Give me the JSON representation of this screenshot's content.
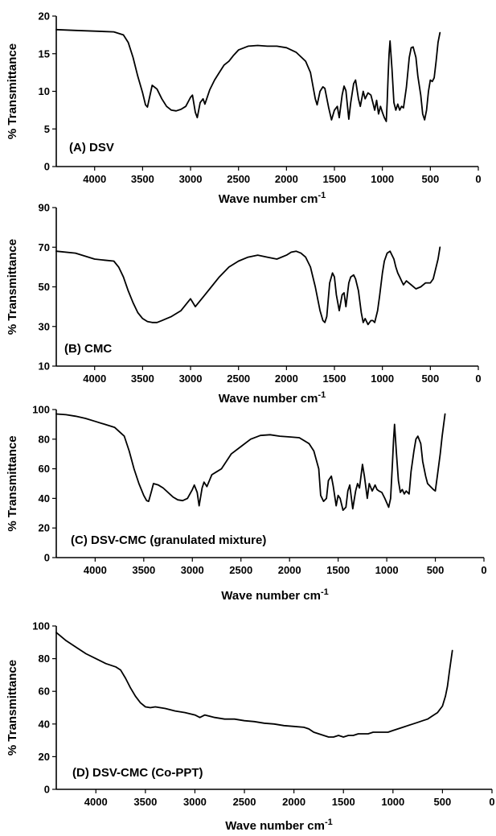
{
  "chart_data": [
    {
      "type": "line",
      "panel_label": "(A) DSV",
      "xlabel": "Wave number cm",
      "xlabel_sup": "-1",
      "ylabel": "% Transmittance",
      "xlim": [
        4400,
        0
      ],
      "ylim": [
        0,
        20
      ],
      "xticks": [
        4000,
        3500,
        3000,
        2500,
        2000,
        1500,
        1000,
        500,
        0
      ],
      "yticks": [
        0,
        5,
        10,
        15,
        20
      ],
      "grid": false,
      "x": [
        4400,
        4200,
        4000,
        3800,
        3700,
        3650,
        3600,
        3550,
        3500,
        3470,
        3450,
        3400,
        3350,
        3300,
        3250,
        3200,
        3150,
        3100,
        3050,
        3000,
        2980,
        2950,
        2930,
        2900,
        2870,
        2850,
        2800,
        2750,
        2700,
        2650,
        2600,
        2550,
        2500,
        2400,
        2300,
        2200,
        2100,
        2000,
        1900,
        1800,
        1750,
        1700,
        1680,
        1650,
        1620,
        1600,
        1560,
        1530,
        1500,
        1470,
        1450,
        1420,
        1400,
        1380,
        1350,
        1330,
        1300,
        1280,
        1250,
        1230,
        1200,
        1180,
        1150,
        1120,
        1100,
        1080,
        1060,
        1040,
        1020,
        1000,
        980,
        960,
        950,
        940,
        930,
        920,
        900,
        880,
        860,
        840,
        820,
        800,
        780,
        750,
        720,
        700,
        680,
        650,
        630,
        600,
        580,
        560,
        540,
        520,
        500,
        480,
        460,
        440,
        420,
        400
      ],
      "y": [
        18.2,
        18.1,
        18.0,
        17.9,
        17.5,
        16.5,
        14.5,
        12.0,
        9.8,
        8.2,
        7.9,
        10.8,
        10.3,
        9.0,
        8.0,
        7.5,
        7.4,
        7.6,
        8.0,
        9.2,
        9.5,
        7.2,
        6.5,
        8.5,
        9.0,
        8.3,
        10.2,
        11.5,
        12.5,
        13.5,
        14.0,
        14.8,
        15.5,
        16.0,
        16.1,
        16.0,
        16.0,
        15.8,
        15.2,
        14.0,
        12.5,
        9.0,
        8.2,
        10.0,
        10.6,
        10.4,
        7.8,
        6.2,
        7.5,
        8.0,
        6.5,
        9.5,
        10.7,
        10.1,
        6.3,
        8.5,
        11.0,
        11.5,
        9.0,
        8.0,
        10.0,
        9.0,
        9.8,
        9.5,
        8.5,
        7.5,
        8.8,
        7.0,
        8.0,
        7.2,
        6.5,
        6.0,
        8.5,
        12.0,
        15.0,
        16.7,
        13.0,
        8.5,
        7.5,
        8.3,
        7.5,
        8.0,
        7.8,
        10.5,
        14.5,
        15.8,
        15.9,
        14.5,
        12.0,
        9.5,
        7.0,
        6.2,
        7.5,
        10.0,
        11.5,
        11.3,
        11.8,
        14.0,
        16.5,
        17.8
      ]
    },
    {
      "type": "line",
      "panel_label": "(B) CMC",
      "xlabel": "Wave number cm",
      "xlabel_sup": "-1",
      "ylabel": "% Transmittance",
      "xlim": [
        4400,
        0
      ],
      "ylim": [
        10,
        90
      ],
      "xticks": [
        4000,
        3500,
        3000,
        2500,
        2000,
        1500,
        1000,
        500,
        0
      ],
      "yticks": [
        10,
        30,
        50,
        70,
        90
      ],
      "grid": false,
      "x": [
        4400,
        4200,
        4000,
        3900,
        3800,
        3750,
        3700,
        3650,
        3600,
        3550,
        3500,
        3450,
        3400,
        3350,
        3300,
        3250,
        3200,
        3100,
        3000,
        2950,
        2900,
        2850,
        2800,
        2700,
        2600,
        2500,
        2400,
        2300,
        2200,
        2100,
        2000,
        1950,
        1900,
        1850,
        1800,
        1750,
        1700,
        1650,
        1620,
        1600,
        1580,
        1550,
        1520,
        1500,
        1480,
        1450,
        1420,
        1400,
        1380,
        1350,
        1330,
        1300,
        1280,
        1250,
        1220,
        1200,
        1180,
        1150,
        1120,
        1100,
        1080,
        1050,
        1030,
        1000,
        980,
        950,
        920,
        900,
        880,
        860,
        840,
        820,
        800,
        780,
        750,
        700,
        650,
        600,
        550,
        500,
        470,
        450,
        420,
        400
      ],
      "y": [
        68,
        67,
        64,
        63.5,
        63,
        60,
        55,
        48,
        42,
        37,
        34,
        32.5,
        32,
        32,
        33,
        34,
        35,
        38,
        44,
        40,
        43,
        46,
        49,
        55,
        60,
        63,
        65,
        66,
        65,
        64,
        66,
        67.5,
        68,
        67,
        65,
        60,
        50,
        38,
        33,
        32,
        35,
        52,
        57,
        55,
        46,
        38,
        46,
        47,
        40,
        52,
        55,
        56,
        54,
        48,
        37,
        32,
        34,
        31,
        33,
        33,
        32,
        38,
        45,
        57,
        63,
        67,
        68,
        66,
        64,
        60,
        57,
        55,
        53,
        51,
        53,
        51,
        49,
        50,
        52,
        52,
        54,
        58,
        64,
        70
      ]
    },
    {
      "type": "line",
      "panel_label": "(C) DSV-CMC  (granulated mixture)",
      "xlabel": "Wave number cm",
      "xlabel_sup": "-1",
      "ylabel": "% Transmittance",
      "xlim": [
        4400,
        0
      ],
      "ylim": [
        0,
        100
      ],
      "xticks": [
        4000,
        3500,
        3000,
        2500,
        2000,
        1500,
        1000,
        500,
        0
      ],
      "yticks": [
        0,
        20,
        40,
        60,
        80,
        100
      ],
      "grid": false,
      "x": [
        4400,
        4300,
        4200,
        4100,
        4000,
        3900,
        3800,
        3700,
        3650,
        3600,
        3550,
        3500,
        3470,
        3450,
        3420,
        3400,
        3350,
        3300,
        3250,
        3200,
        3150,
        3100,
        3050,
        3000,
        2980,
        2950,
        2930,
        2900,
        2880,
        2850,
        2800,
        2750,
        2700,
        2650,
        2600,
        2500,
        2400,
        2300,
        2200,
        2100,
        2000,
        1900,
        1800,
        1750,
        1700,
        1680,
        1650,
        1620,
        1600,
        1570,
        1550,
        1520,
        1500,
        1480,
        1450,
        1420,
        1400,
        1380,
        1350,
        1320,
        1300,
        1280,
        1250,
        1230,
        1200,
        1180,
        1150,
        1120,
        1100,
        1080,
        1050,
        1020,
        1000,
        980,
        960,
        940,
        930,
        920,
        900,
        880,
        860,
        840,
        820,
        800,
        770,
        750,
        720,
        700,
        680,
        650,
        630,
        600,
        580,
        550,
        520,
        500,
        480,
        450,
        430,
        400
      ],
      "y": [
        97,
        96.5,
        95.5,
        94,
        92,
        90,
        88,
        82,
        72,
        60,
        50,
        42,
        38.5,
        38,
        45,
        50,
        49,
        47,
        44,
        41,
        39,
        38.5,
        40,
        46,
        49,
        44,
        35,
        47,
        51,
        48,
        56,
        58,
        60,
        65,
        70,
        75,
        80,
        82.5,
        83,
        82,
        81.5,
        81,
        77,
        72,
        60,
        42,
        38,
        40,
        52,
        55,
        48,
        35,
        42,
        40,
        32,
        34,
        45,
        49,
        33,
        45,
        50,
        47,
        63,
        55,
        40,
        50,
        45,
        49,
        46,
        45,
        44,
        40,
        37,
        34,
        40,
        65,
        80,
        90,
        70,
        52,
        44,
        46,
        43,
        45,
        43,
        58,
        72,
        80,
        82,
        77,
        65,
        55,
        50,
        48,
        46,
        45,
        55,
        70,
        82,
        97
      ]
    },
    {
      "type": "line",
      "panel_label": "(D) DSV-CMC  (Co-PPT)",
      "xlabel": "Wave number cm",
      "xlabel_sup": "-1",
      "ylabel": "% Transmittance",
      "xlim": [
        4400,
        0
      ],
      "ylim": [
        0,
        100
      ],
      "xticks": [
        4000,
        3500,
        3000,
        2500,
        2000,
        1500,
        1000,
        500,
        0
      ],
      "yticks": [
        0,
        20,
        40,
        60,
        80,
        100
      ],
      "grid": false,
      "x": [
        4400,
        4300,
        4200,
        4100,
        4000,
        3900,
        3800,
        3750,
        3700,
        3650,
        3600,
        3550,
        3500,
        3450,
        3400,
        3300,
        3200,
        3100,
        3000,
        2950,
        2900,
        2800,
        2700,
        2600,
        2500,
        2400,
        2300,
        2200,
        2100,
        2000,
        1900,
        1850,
        1800,
        1700,
        1650,
        1600,
        1550,
        1500,
        1450,
        1400,
        1350,
        1300,
        1250,
        1200,
        1150,
        1100,
        1050,
        1000,
        950,
        900,
        850,
        800,
        750,
        700,
        650,
        600,
        550,
        500,
        470,
        450,
        430,
        400
      ],
      "y": [
        96,
        91,
        87,
        83,
        80,
        77,
        75,
        73,
        68,
        62,
        57,
        53,
        50.5,
        50,
        50.5,
        49.5,
        48,
        47,
        45.5,
        44,
        45.5,
        44,
        43,
        43,
        42,
        41.5,
        40.5,
        40,
        39,
        38.5,
        38,
        37,
        35,
        33,
        32,
        32,
        33,
        32,
        33,
        33,
        34,
        34,
        34,
        35,
        35,
        35,
        35,
        36,
        37,
        38,
        39,
        40,
        41,
        42,
        43,
        45,
        47,
        51,
        57,
        63,
        72,
        85
      ]
    }
  ]
}
